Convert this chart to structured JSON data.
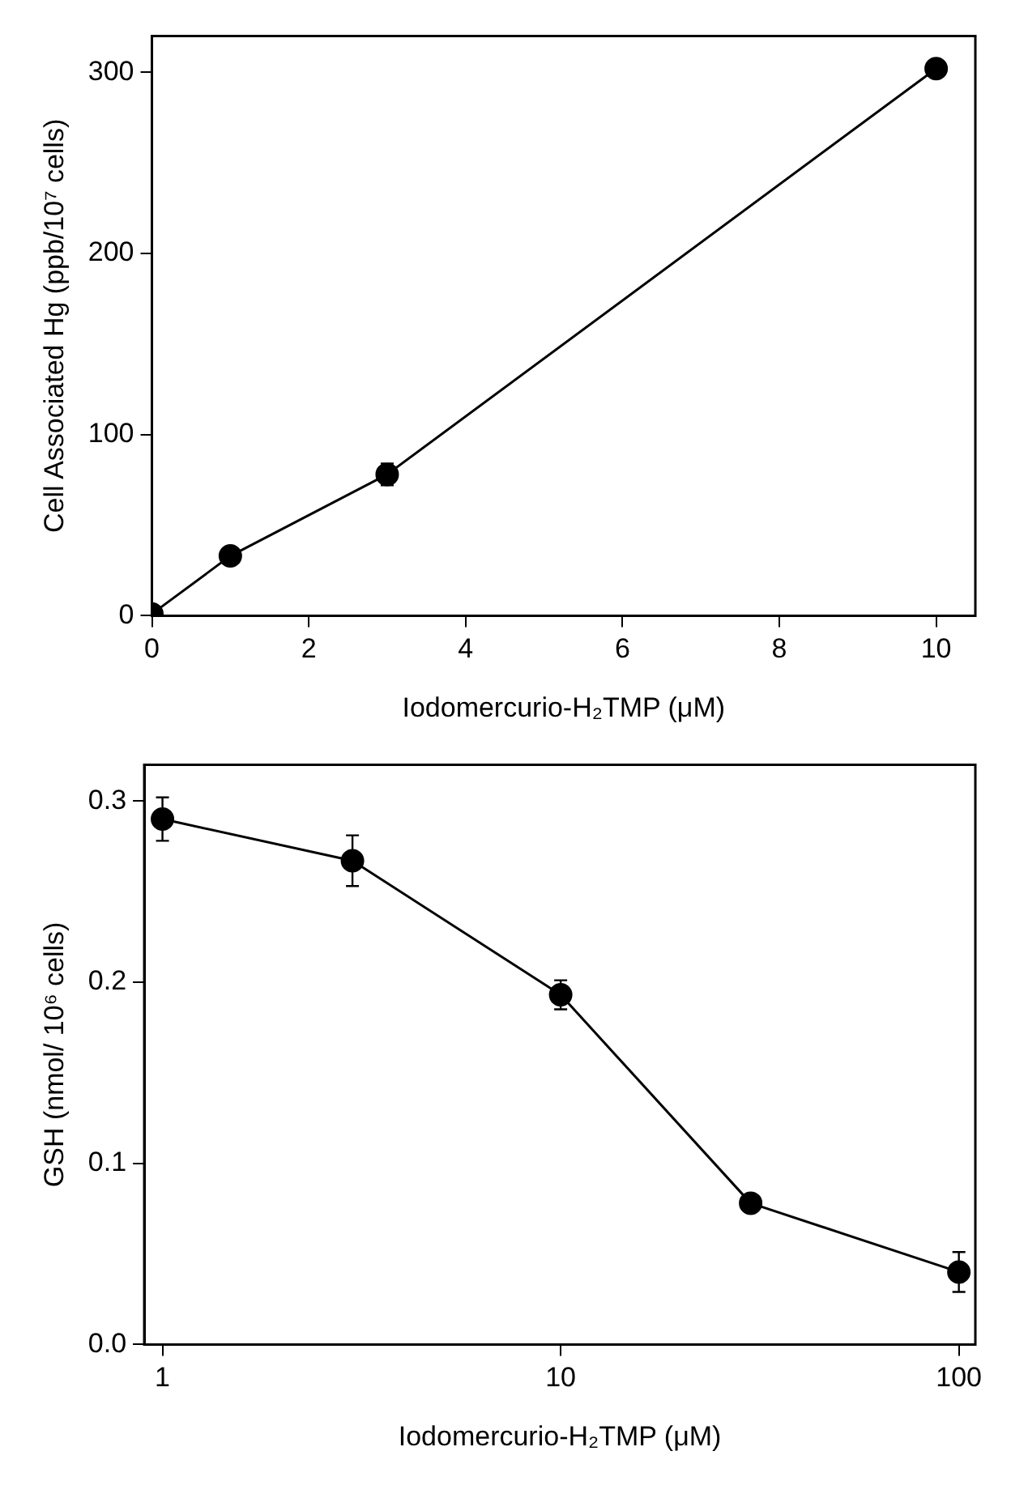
{
  "chart_data": [
    {
      "type": "line",
      "xlabel": "Iodomercurio-H₂TMP (μM)",
      "ylabel": "Cell Associated Hg (ppb/10⁷ cells)",
      "xlim": [
        0,
        10.5
      ],
      "xticks": [
        0,
        2,
        4,
        6,
        8,
        10
      ],
      "ylim": [
        0,
        320
      ],
      "yticks": [
        0,
        100,
        200,
        300
      ],
      "grid": false,
      "legend": false,
      "marker": "circle",
      "line_style": "solid",
      "series": [
        {
          "color": "#000000",
          "x": [
            0,
            1,
            3,
            10
          ],
          "values": [
            1,
            33,
            78,
            302
          ],
          "errors": [
            null,
            null,
            6,
            null
          ]
        }
      ]
    },
    {
      "type": "line",
      "xlabel": "Iodomercurio-H₂TMP (μM)",
      "ylabel": "GSH (nmol/ 10⁶ cells)",
      "log": "x",
      "xlim": [
        0.9,
        110
      ],
      "xticks": [
        1,
        10,
        100
      ],
      "ylim": [
        0,
        0.32
      ],
      "yticks": [
        {
          "value": 0,
          "label": "0.0"
        },
        {
          "value": 0.1,
          "label": "0.1"
        },
        {
          "value": 0.2,
          "label": "0.2"
        },
        {
          "value": 0.3,
          "label": "0.3"
        }
      ],
      "grid": false,
      "legend": false,
      "marker": "circle",
      "line_style": "solid",
      "series": [
        {
          "color": "#000000",
          "x": [
            1,
            3,
            10,
            30,
            100
          ],
          "values": [
            0.29,
            0.267,
            0.193,
            0.078,
            0.04
          ],
          "errors": [
            0.012,
            0.014,
            0.008,
            null,
            0.011
          ]
        }
      ]
    }
  ]
}
